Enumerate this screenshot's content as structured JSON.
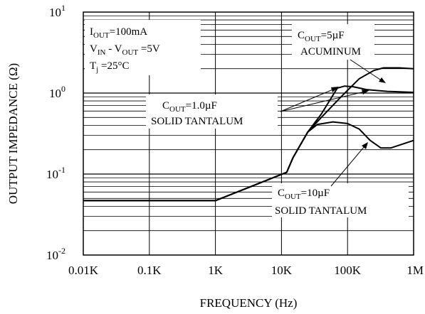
{
  "chart_data": {
    "type": "line",
    "xlabel": "FREQUENCY  (Hz)",
    "ylabel": "OUTPUT IMPEDANCE  (Ω)",
    "x_scale": "log",
    "y_scale": "log",
    "xlim_hz": [
      10,
      1000000
    ],
    "ylim_ohm": [
      0.01,
      10
    ],
    "x_ticks": [
      {
        "value": 10,
        "label": "0.01K"
      },
      {
        "value": 100,
        "label": "0.1K"
      },
      {
        "value": 1000,
        "label": "1K"
      },
      {
        "value": 10000,
        "label": "10K"
      },
      {
        "value": 100000,
        "label": "100K"
      },
      {
        "value": 1000000,
        "label": "1M"
      }
    ],
    "y_ticks": [
      {
        "value": 0.01,
        "base": "10",
        "exp": "-2"
      },
      {
        "value": 0.1,
        "base": "10",
        "exp": "-1"
      },
      {
        "value": 1,
        "base": "10",
        "exp": "0"
      },
      {
        "value": 10,
        "base": "10",
        "exp": "1"
      }
    ],
    "grid": true,
    "conditions": {
      "line1": {
        "main": "I",
        "sub": "OUT",
        "rest": "=100mA"
      },
      "line2": {
        "a_main": "V",
        "a_sub": "IN",
        "mid": " - V",
        "b_sub": "OUT",
        "rest": " =5V"
      },
      "line3": {
        "main": "T",
        "sub": "j",
        "rest": " =25°C"
      }
    },
    "series": [
      {
        "label_main": "C",
        "label_sub": "OUT",
        "label_rest": "=5µF",
        "label_line2": "ACUMINUM",
        "points": [
          [
            10,
            0.047
          ],
          [
            1000,
            0.047
          ],
          [
            12000,
            0.105
          ],
          [
            15000,
            0.16
          ],
          [
            25000,
            0.33
          ],
          [
            40000,
            0.5
          ],
          [
            80000,
            0.9
          ],
          [
            150000,
            1.5
          ],
          [
            250000,
            1.9
          ],
          [
            350000,
            2.05
          ],
          [
            600000,
            2.05
          ],
          [
            1000000,
            2.0
          ]
        ]
      },
      {
        "label_main": "C",
        "label_sub": "OUT",
        "label_rest": "=1.0µF",
        "label_line2": "SOLID TANTALUM",
        "points": [
          [
            10,
            0.047
          ],
          [
            1000,
            0.047
          ],
          [
            12000,
            0.105
          ],
          [
            15000,
            0.16
          ],
          [
            25000,
            0.33
          ],
          [
            40000,
            0.55
          ],
          [
            70000,
            1.15
          ],
          [
            90000,
            1.22
          ],
          [
            120000,
            1.2
          ],
          [
            200000,
            1.1
          ],
          [
            400000,
            1.05
          ],
          [
            1000000,
            1.02
          ]
        ]
      },
      {
        "label_main": "C",
        "label_sub": "OUT",
        "label_rest": "=10µF",
        "label_line2": "SOLID TANTALUM",
        "points": [
          [
            10,
            0.047
          ],
          [
            1000,
            0.047
          ],
          [
            12000,
            0.105
          ],
          [
            15000,
            0.16
          ],
          [
            25000,
            0.33
          ],
          [
            35000,
            0.41
          ],
          [
            60000,
            0.44
          ],
          [
            100000,
            0.42
          ],
          [
            150000,
            0.36
          ],
          [
            220000,
            0.26
          ],
          [
            320000,
            0.21
          ],
          [
            450000,
            0.21
          ],
          [
            1000000,
            0.26
          ]
        ]
      }
    ]
  }
}
